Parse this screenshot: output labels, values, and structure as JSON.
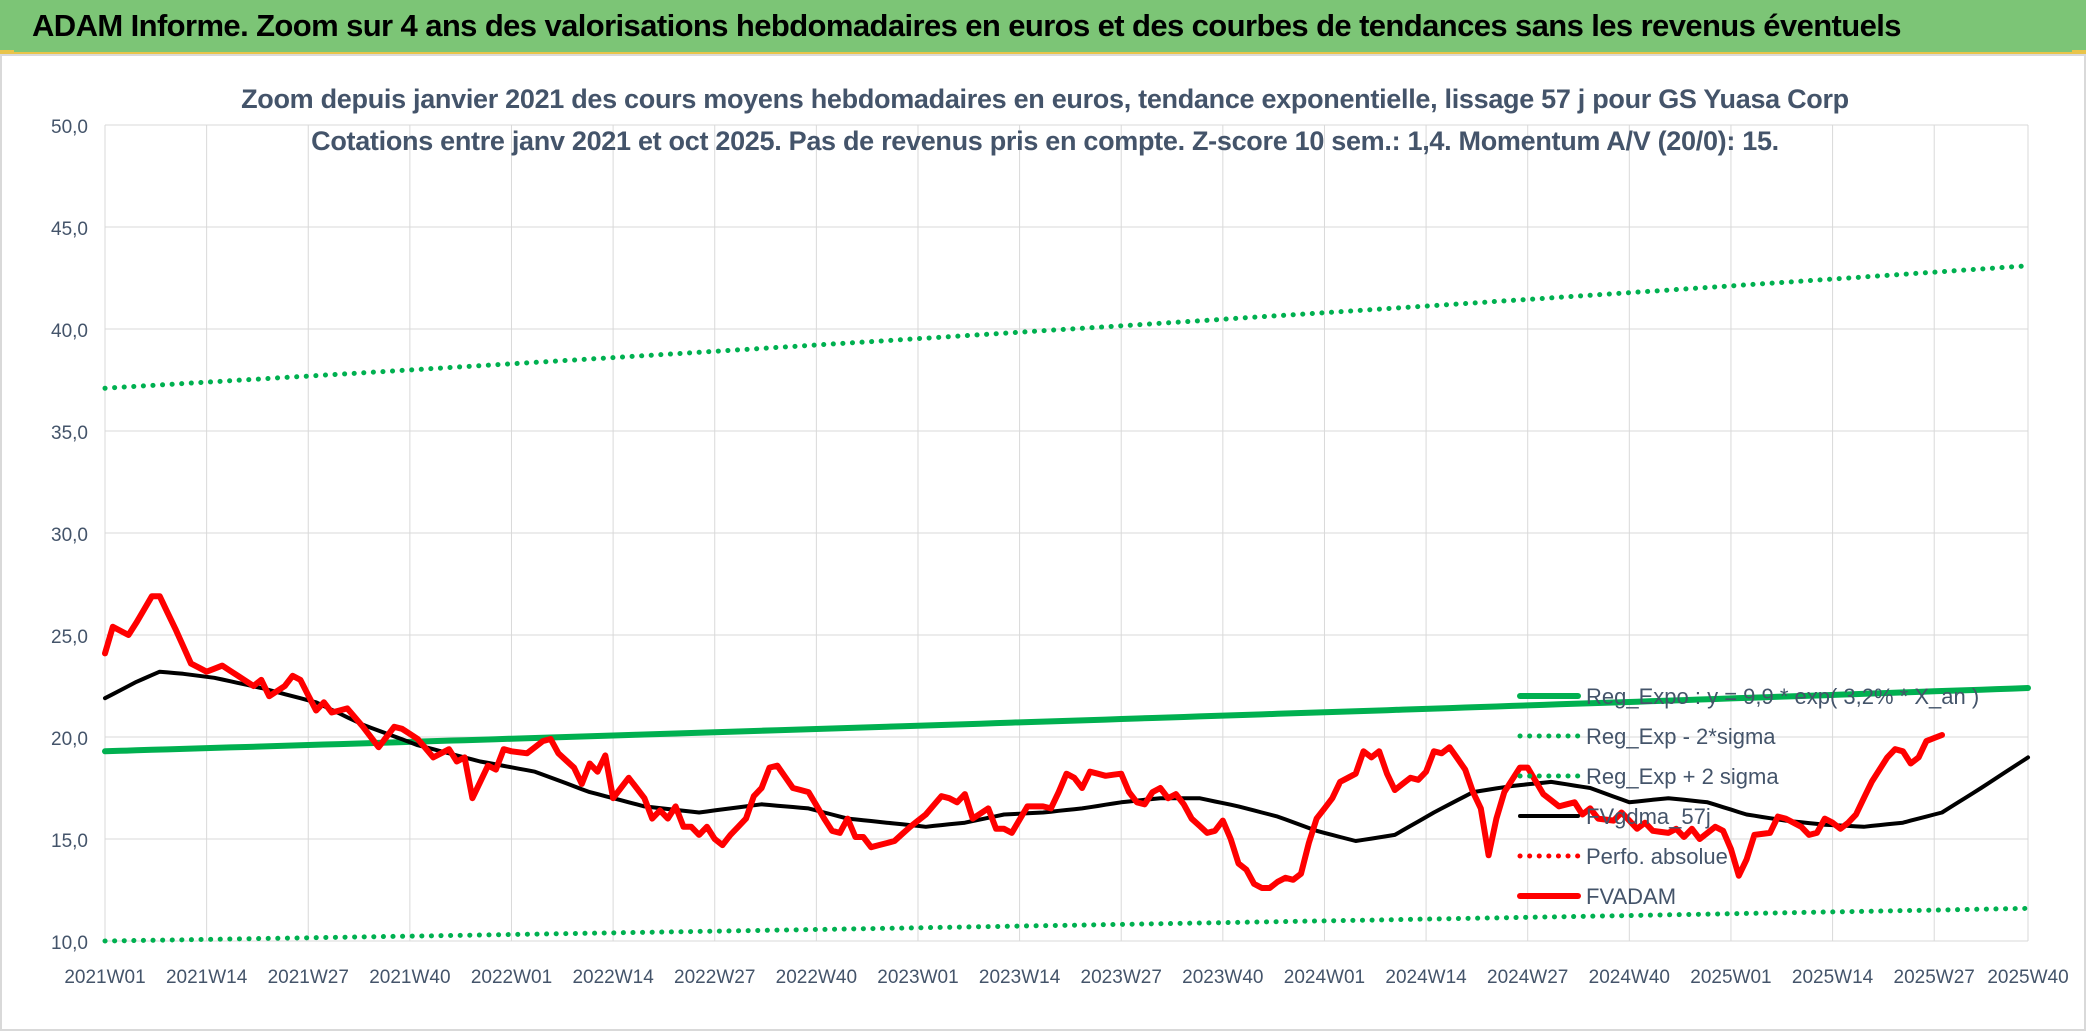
{
  "header": {
    "title": "ADAM Informe. Zoom sur 4 ans des valorisations hebdomadaires en euros et des courbes de tendances sans les revenus éventuels"
  },
  "colors": {
    "header_bg": "#7cc576",
    "trend_green": "#00b050",
    "price_red": "#ff0000",
    "smooth_black": "#000000",
    "axis_text": "#44546a",
    "grid": "#d9d9d9"
  },
  "chart_data": {
    "type": "line",
    "title": "Zoom depuis janvier 2021 des cours moyens hebdomadaires en euros, tendance exponentielle, lissage 57 j pour GS Yuasa Corp",
    "subtitle": "Cotations entre janv 2021 et oct 2025. Pas de revenus pris en compte. Z-score 10 sem.: 1,4. Momentum A/V (20/0): 15.",
    "xlabel": "",
    "ylabel": "",
    "ylim": [
      10,
      50
    ],
    "yticks": [
      "10,0",
      "15,0",
      "20,0",
      "25,0",
      "30,0",
      "35,0",
      "40,0",
      "45,0",
      "50,0"
    ],
    "x_tick_labels": [
      "2021W01",
      "2021W14",
      "2021W27",
      "2021W40",
      "2022W01",
      "2022W14",
      "2022W27",
      "2022W40",
      "2023W01",
      "2023W14",
      "2023W27",
      "2023W40",
      "2024W01",
      "2024W14",
      "2024W27",
      "2024W40",
      "2025W01",
      "2025W14",
      "2025W27",
      "2025W40"
    ],
    "week_count": 247,
    "legend_position": "right",
    "series": [
      {
        "name": "Reg_Expo : y = 9,9 * exp( 3,2% * X_an )",
        "style": "solid-thick",
        "color": "#00b050",
        "anchors": [
          [
            0,
            19.3
          ],
          [
            246,
            22.4
          ]
        ]
      },
      {
        "name": "Reg_Exp - 2*sigma",
        "style": "dotted",
        "color": "#00b050",
        "anchors": [
          [
            0,
            10.0
          ],
          [
            246,
            11.6
          ]
        ]
      },
      {
        "name": "Reg_Exp + 2 sigma",
        "style": "dotted",
        "color": "#00b050",
        "anchors": [
          [
            0,
            37.1
          ],
          [
            246,
            43.1
          ]
        ]
      },
      {
        "name": "FVgdma_57j",
        "style": "solid",
        "color": "#000000",
        "anchors": [
          [
            0,
            21.9
          ],
          [
            4,
            22.7
          ],
          [
            7,
            23.2
          ],
          [
            10,
            23.1
          ],
          [
            14,
            22.9
          ],
          [
            20,
            22.4
          ],
          [
            27,
            21.7
          ],
          [
            33,
            20.6
          ],
          [
            40,
            19.6
          ],
          [
            48,
            18.8
          ],
          [
            55,
            18.3
          ],
          [
            62,
            17.3
          ],
          [
            69,
            16.6
          ],
          [
            76,
            16.3
          ],
          [
            80,
            16.5
          ],
          [
            84,
            16.7
          ],
          [
            90,
            16.5
          ],
          [
            95,
            16.0
          ],
          [
            100,
            15.8
          ],
          [
            105,
            15.6
          ],
          [
            110,
            15.8
          ],
          [
            115,
            16.2
          ],
          [
            120,
            16.3
          ],
          [
            125,
            16.5
          ],
          [
            130,
            16.8
          ],
          [
            135,
            17.0
          ],
          [
            140,
            17.0
          ],
          [
            145,
            16.6
          ],
          [
            150,
            16.1
          ],
          [
            155,
            15.4
          ],
          [
            160,
            14.9
          ],
          [
            165,
            15.2
          ],
          [
            170,
            16.3
          ],
          [
            175,
            17.3
          ],
          [
            180,
            17.6
          ],
          [
            185,
            17.8
          ],
          [
            190,
            17.5
          ],
          [
            195,
            16.8
          ],
          [
            200,
            17.0
          ],
          [
            205,
            16.8
          ],
          [
            210,
            16.2
          ],
          [
            215,
            15.9
          ],
          [
            220,
            15.7
          ],
          [
            225,
            15.6
          ],
          [
            230,
            15.8
          ],
          [
            235,
            16.3
          ],
          [
            240,
            17.5
          ],
          [
            244,
            18.5
          ],
          [
            246,
            19.0
          ]
        ]
      },
      {
        "name": "Perfo. absolue",
        "style": "dotted",
        "color": "#ff0000",
        "anchors": []
      },
      {
        "name": "FVADAM",
        "style": "solid-thick",
        "color": "#ff0000",
        "anchors": [
          [
            0,
            24.1
          ],
          [
            1,
            25.4
          ],
          [
            3,
            25.0
          ],
          [
            4,
            25.6
          ],
          [
            6,
            26.9
          ],
          [
            7,
            26.9
          ],
          [
            9,
            25.3
          ],
          [
            11,
            23.6
          ],
          [
            13,
            23.2
          ],
          [
            15,
            23.5
          ],
          [
            17,
            23.0
          ],
          [
            19,
            22.5
          ],
          [
            20,
            22.8
          ],
          [
            21,
            22.0
          ],
          [
            23,
            22.5
          ],
          [
            24,
            23.0
          ],
          [
            25,
            22.8
          ],
          [
            27,
            21.3
          ],
          [
            28,
            21.7
          ],
          [
            29,
            21.2
          ],
          [
            31,
            21.4
          ],
          [
            33,
            20.5
          ],
          [
            35,
            19.5
          ],
          [
            37,
            20.5
          ],
          [
            38,
            20.4
          ],
          [
            40,
            19.9
          ],
          [
            42,
            19.0
          ],
          [
            44,
            19.4
          ],
          [
            45,
            18.8
          ],
          [
            46,
            19.0
          ],
          [
            47,
            17.0
          ],
          [
            48,
            17.8
          ],
          [
            49,
            18.6
          ],
          [
            50,
            18.4
          ],
          [
            51,
            19.4
          ],
          [
            52,
            19.3
          ],
          [
            54,
            19.2
          ],
          [
            56,
            19.8
          ],
          [
            57,
            19.9
          ],
          [
            58,
            19.2
          ],
          [
            60,
            18.5
          ],
          [
            61,
            17.7
          ],
          [
            62,
            18.7
          ],
          [
            63,
            18.3
          ],
          [
            64,
            19.1
          ],
          [
            65,
            17.0
          ],
          [
            66,
            17.5
          ],
          [
            67,
            18.0
          ],
          [
            69,
            17.0
          ],
          [
            70,
            16.0
          ],
          [
            71,
            16.4
          ],
          [
            72,
            16.0
          ],
          [
            73,
            16.6
          ],
          [
            74,
            15.6
          ],
          [
            75,
            15.6
          ],
          [
            76,
            15.2
          ],
          [
            77,
            15.6
          ],
          [
            78,
            15.0
          ],
          [
            79,
            14.7
          ],
          [
            80,
            15.2
          ],
          [
            82,
            16.0
          ],
          [
            83,
            17.1
          ],
          [
            84,
            17.5
          ],
          [
            85,
            18.5
          ],
          [
            86,
            18.6
          ],
          [
            88,
            17.5
          ],
          [
            90,
            17.3
          ],
          [
            92,
            16.0
          ],
          [
            93,
            15.4
          ],
          [
            94,
            15.3
          ],
          [
            95,
            16.0
          ],
          [
            96,
            15.1
          ],
          [
            97,
            15.1
          ],
          [
            98,
            14.6
          ],
          [
            99,
            14.7
          ],
          [
            101,
            14.9
          ],
          [
            103,
            15.6
          ],
          [
            105,
            16.2
          ],
          [
            107,
            17.1
          ],
          [
            108,
            17.0
          ],
          [
            109,
            16.8
          ],
          [
            110,
            17.2
          ],
          [
            111,
            16.0
          ],
          [
            113,
            16.5
          ],
          [
            114,
            15.5
          ],
          [
            115,
            15.5
          ],
          [
            116,
            15.3
          ],
          [
            118,
            16.6
          ],
          [
            120,
            16.6
          ],
          [
            121,
            16.5
          ],
          [
            122,
            17.3
          ],
          [
            123,
            18.2
          ],
          [
            124,
            18.0
          ],
          [
            125,
            17.5
          ],
          [
            126,
            18.3
          ],
          [
            128,
            18.1
          ],
          [
            130,
            18.2
          ],
          [
            131,
            17.3
          ],
          [
            132,
            16.8
          ],
          [
            133,
            16.7
          ],
          [
            134,
            17.3
          ],
          [
            135,
            17.5
          ],
          [
            136,
            17.0
          ],
          [
            137,
            17.2
          ],
          [
            138,
            16.7
          ],
          [
            139,
            16.0
          ],
          [
            141,
            15.3
          ],
          [
            142,
            15.4
          ],
          [
            143,
            15.9
          ],
          [
            144,
            15.0
          ],
          [
            145,
            13.8
          ],
          [
            146,
            13.5
          ],
          [
            147,
            12.8
          ],
          [
            148,
            12.6
          ],
          [
            149,
            12.6
          ],
          [
            150,
            12.9
          ],
          [
            151,
            13.1
          ],
          [
            152,
            13.0
          ],
          [
            153,
            13.3
          ],
          [
            154,
            14.8
          ],
          [
            155,
            16.0
          ],
          [
            157,
            17.0
          ],
          [
            158,
            17.8
          ],
          [
            160,
            18.2
          ],
          [
            161,
            19.3
          ],
          [
            162,
            19.0
          ],
          [
            163,
            19.3
          ],
          [
            164,
            18.2
          ],
          [
            165,
            17.4
          ],
          [
            167,
            18.0
          ],
          [
            168,
            17.9
          ],
          [
            169,
            18.3
          ],
          [
            170,
            19.3
          ],
          [
            171,
            19.2
          ],
          [
            172,
            19.5
          ],
          [
            174,
            18.4
          ],
          [
            175,
            17.3
          ],
          [
            176,
            16.5
          ],
          [
            177,
            14.2
          ],
          [
            178,
            16.0
          ],
          [
            179,
            17.3
          ],
          [
            181,
            18.5
          ],
          [
            182,
            18.5
          ],
          [
            184,
            17.2
          ],
          [
            186,
            16.6
          ],
          [
            188,
            16.8
          ],
          [
            189,
            16.2
          ],
          [
            190,
            16.5
          ],
          [
            191,
            16.0
          ],
          [
            193,
            15.9
          ],
          [
            194,
            16.3
          ],
          [
            196,
            15.5
          ],
          [
            197,
            15.8
          ],
          [
            198,
            15.4
          ],
          [
            200,
            15.3
          ],
          [
            201,
            15.5
          ],
          [
            202,
            15.1
          ],
          [
            203,
            15.5
          ],
          [
            204,
            15.0
          ],
          [
            206,
            15.6
          ],
          [
            207,
            15.4
          ],
          [
            208,
            14.5
          ],
          [
            209,
            13.2
          ],
          [
            210,
            14.0
          ],
          [
            211,
            15.2
          ],
          [
            213,
            15.3
          ],
          [
            214,
            16.1
          ],
          [
            215,
            16.0
          ],
          [
            217,
            15.6
          ],
          [
            218,
            15.2
          ],
          [
            219,
            15.3
          ],
          [
            220,
            16.0
          ],
          [
            221,
            15.8
          ],
          [
            222,
            15.5
          ],
          [
            223,
            15.8
          ],
          [
            224,
            16.2
          ],
          [
            226,
            17.8
          ],
          [
            228,
            19.0
          ],
          [
            229,
            19.4
          ],
          [
            230,
            19.3
          ],
          [
            231,
            18.7
          ],
          [
            232,
            19.0
          ],
          [
            233,
            19.8
          ],
          [
            235,
            20.1
          ]
        ]
      }
    ]
  }
}
